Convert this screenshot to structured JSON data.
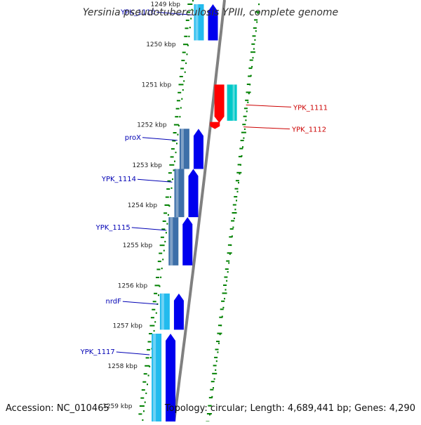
{
  "title": "Yersinia pseudotuberculosis YPIII, complete genome",
  "accession": "Accession: NC_010465",
  "summary": "Topology: circular; Length: 4,689,441 bp; Genes: 4,290",
  "colors": {
    "backbone": "#808080",
    "tick": "#008000",
    "forward_label": "#0000b4",
    "reverse_label": "#cc0000",
    "cds_forward": "#0000ee",
    "cds_reverse": "#ff0000",
    "gene_cyan": "#22bbee",
    "gene_steel": "#3d6fa8",
    "gene_teal": "#00c8c8"
  },
  "map": {
    "kbp_labels": [
      "1249 kbp",
      "1250 kbp",
      "1251 kbp",
      "1252 kbp",
      "1253 kbp",
      "1254 kbp",
      "1255 kbp",
      "1256 kbp",
      "1257 kbp",
      "1258 kbp",
      "1259 kbp"
    ],
    "forward_genes": [
      {
        "label": "YPK_1110",
        "start_kbp": 1249.0,
        "end_kbp": 1249.9,
        "color": "cyan"
      },
      {
        "label": "proX",
        "start_kbp": 1252.1,
        "end_kbp": 1253.1,
        "color": "steel"
      },
      {
        "label": "YPK_1114",
        "start_kbp": 1253.1,
        "end_kbp": 1254.3,
        "color": "steel"
      },
      {
        "label": "YPK_1115",
        "start_kbp": 1254.3,
        "end_kbp": 1255.5,
        "color": "steel"
      },
      {
        "label": "nrdF",
        "start_kbp": 1256.2,
        "end_kbp": 1257.1,
        "color": "cyan"
      },
      {
        "label": "YPK_1117",
        "start_kbp": 1257.2,
        "end_kbp": 1259.5,
        "color": "cyan"
      }
    ],
    "reverse_genes": [
      {
        "label": "YPK_1111",
        "start_kbp": 1251.0,
        "end_kbp": 1251.9,
        "color": "teal"
      },
      {
        "label": "YPK_1112",
        "start_kbp": 1252.0,
        "end_kbp": 1252.2,
        "color": "none"
      }
    ]
  }
}
